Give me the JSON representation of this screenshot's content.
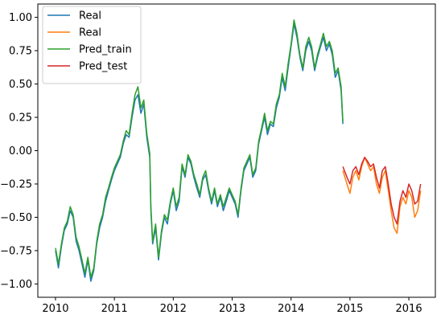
{
  "chart_data": {
    "type": "line",
    "title": "",
    "xlabel": "",
    "ylabel": "",
    "xlim": [
      2009.7,
      2016.45
    ],
    "ylim": [
      -1.1,
      1.1
    ],
    "xticks": [
      2010,
      2011,
      2012,
      2013,
      2014,
      2015,
      2016
    ],
    "xtick_labels": [
      "2010",
      "2011",
      "2012",
      "2013",
      "2014",
      "2015",
      "2016"
    ],
    "yticks": [
      -1.0,
      -0.75,
      -0.5,
      -0.25,
      0.0,
      0.25,
      0.5,
      0.75,
      1.0
    ],
    "ytick_labels": [
      "−1.00",
      "−0.75",
      "−0.50",
      "−0.25",
      "0.00",
      "0.25",
      "0.50",
      "0.75",
      "1.00"
    ],
    "grid": false,
    "legend": "upper left",
    "series": [
      {
        "name": "Real",
        "color": "#1f77b4",
        "x": [
          2010.0,
          2010.05,
          2010.1,
          2010.15,
          2010.2,
          2010.25,
          2010.3,
          2010.35,
          2010.4,
          2010.45,
          2010.5,
          2010.55,
          2010.6,
          2010.65,
          2010.7,
          2010.75,
          2010.8,
          2010.85,
          2010.9,
          2010.95,
          2011.0,
          2011.05,
          2011.1,
          2011.15,
          2011.2,
          2011.25,
          2011.3,
          2011.35,
          2011.4,
          2011.45,
          2011.5,
          2011.55,
          2011.6,
          2011.62,
          2011.65,
          2011.7,
          2011.75,
          2011.8,
          2011.85,
          2011.9,
          2011.95,
          2012.0,
          2012.05,
          2012.1,
          2012.15,
          2012.2,
          2012.25,
          2012.3,
          2012.35,
          2012.4,
          2012.45,
          2012.5,
          2012.55,
          2012.6,
          2012.65,
          2012.7,
          2012.75,
          2012.8,
          2012.85,
          2012.9,
          2012.95,
          2013.0,
          2013.05,
          2013.1,
          2013.15,
          2013.2,
          2013.25,
          2013.3,
          2013.35,
          2013.4,
          2013.45,
          2013.5,
          2013.55,
          2013.6,
          2013.65,
          2013.7,
          2013.75,
          2013.8,
          2013.85,
          2013.9,
          2013.95,
          2014.0,
          2014.05,
          2014.1,
          2014.15,
          2014.2,
          2014.25,
          2014.3,
          2014.35,
          2014.4,
          2014.45,
          2014.5,
          2014.55,
          2014.6,
          2014.65,
          2014.7,
          2014.75,
          2014.8,
          2014.85,
          2014.88
        ],
        "y": [
          -0.75,
          -0.88,
          -0.72,
          -0.6,
          -0.55,
          -0.45,
          -0.5,
          -0.68,
          -0.75,
          -0.85,
          -0.95,
          -0.82,
          -0.98,
          -0.9,
          -0.7,
          -0.58,
          -0.5,
          -0.38,
          -0.3,
          -0.22,
          -0.15,
          -0.1,
          -0.05,
          0.05,
          0.12,
          0.1,
          0.25,
          0.38,
          0.42,
          0.28,
          0.35,
          0.1,
          -0.05,
          -0.45,
          -0.7,
          -0.58,
          -0.82,
          -0.62,
          -0.5,
          -0.55,
          -0.4,
          -0.3,
          -0.45,
          -0.38,
          -0.12,
          -0.2,
          -0.05,
          -0.1,
          -0.2,
          -0.28,
          -0.35,
          -0.22,
          -0.18,
          -0.3,
          -0.4,
          -0.3,
          -0.42,
          -0.35,
          -0.45,
          -0.38,
          -0.3,
          -0.35,
          -0.4,
          -0.5,
          -0.3,
          -0.15,
          -0.1,
          -0.05,
          -0.2,
          -0.15,
          0.05,
          0.15,
          0.25,
          0.12,
          0.2,
          0.18,
          0.32,
          0.4,
          0.55,
          0.45,
          0.62,
          0.78,
          0.95,
          0.85,
          0.7,
          0.6,
          0.75,
          0.82,
          0.75,
          0.6,
          0.7,
          0.78,
          0.85,
          0.75,
          0.8,
          0.72,
          0.55,
          0.6,
          0.45,
          0.2
        ]
      },
      {
        "name": "Real",
        "color": "#ff7f0e",
        "x": [
          2014.88,
          2014.95,
          2015.0,
          2015.05,
          2015.1,
          2015.15,
          2015.2,
          2015.25,
          2015.3,
          2015.35,
          2015.4,
          2015.45,
          2015.5,
          2015.55,
          2015.6,
          2015.65,
          2015.7,
          2015.75,
          2015.8,
          2015.85,
          2015.9,
          2015.95,
          2016.0,
          2016.05,
          2016.1,
          2016.15,
          2016.2
        ],
        "y": [
          -0.15,
          -0.25,
          -0.32,
          -0.2,
          -0.15,
          -0.22,
          -0.12,
          -0.05,
          -0.1,
          -0.15,
          -0.12,
          -0.25,
          -0.32,
          -0.2,
          -0.15,
          -0.3,
          -0.45,
          -0.58,
          -0.62,
          -0.42,
          -0.35,
          -0.4,
          -0.3,
          -0.35,
          -0.5,
          -0.45,
          -0.3
        ]
      },
      {
        "name": "Pred_train",
        "color": "#2ca02c",
        "x": [
          2010.0,
          2010.05,
          2010.1,
          2010.15,
          2010.2,
          2010.25,
          2010.3,
          2010.35,
          2010.4,
          2010.45,
          2010.5,
          2010.55,
          2010.6,
          2010.65,
          2010.7,
          2010.75,
          2010.8,
          2010.85,
          2010.9,
          2010.95,
          2011.0,
          2011.05,
          2011.1,
          2011.15,
          2011.2,
          2011.25,
          2011.3,
          2011.35,
          2011.4,
          2011.45,
          2011.5,
          2011.55,
          2011.6,
          2011.62,
          2011.65,
          2011.7,
          2011.75,
          2011.8,
          2011.85,
          2011.9,
          2011.95,
          2012.0,
          2012.05,
          2012.1,
          2012.15,
          2012.2,
          2012.25,
          2012.3,
          2012.35,
          2012.4,
          2012.45,
          2012.5,
          2012.55,
          2012.6,
          2012.65,
          2012.7,
          2012.75,
          2012.8,
          2012.85,
          2012.9,
          2012.95,
          2013.0,
          2013.05,
          2013.1,
          2013.15,
          2013.2,
          2013.25,
          2013.3,
          2013.35,
          2013.4,
          2013.45,
          2013.5,
          2013.55,
          2013.6,
          2013.65,
          2013.7,
          2013.75,
          2013.8,
          2013.85,
          2013.9,
          2013.95,
          2014.0,
          2014.05,
          2014.1,
          2014.15,
          2014.2,
          2014.25,
          2014.3,
          2014.35,
          2014.4,
          2014.45,
          2014.5,
          2014.55,
          2014.6,
          2014.65,
          2014.7,
          2014.75,
          2014.8,
          2014.85,
          2014.88
        ],
        "y": [
          -0.73,
          -0.85,
          -0.7,
          -0.58,
          -0.53,
          -0.42,
          -0.48,
          -0.65,
          -0.72,
          -0.82,
          -0.92,
          -0.8,
          -0.95,
          -0.88,
          -0.68,
          -0.55,
          -0.48,
          -0.35,
          -0.28,
          -0.2,
          -0.13,
          -0.08,
          -0.03,
          0.07,
          0.15,
          0.12,
          0.28,
          0.42,
          0.48,
          0.32,
          0.38,
          0.13,
          -0.02,
          -0.42,
          -0.68,
          -0.55,
          -0.8,
          -0.6,
          -0.48,
          -0.52,
          -0.38,
          -0.28,
          -0.42,
          -0.35,
          -0.1,
          -0.18,
          -0.03,
          -0.08,
          -0.18,
          -0.25,
          -0.33,
          -0.2,
          -0.15,
          -0.28,
          -0.38,
          -0.28,
          -0.4,
          -0.33,
          -0.42,
          -0.35,
          -0.28,
          -0.33,
          -0.38,
          -0.48,
          -0.28,
          -0.13,
          -0.08,
          -0.03,
          -0.18,
          -0.13,
          0.07,
          0.17,
          0.28,
          0.15,
          0.22,
          0.2,
          0.35,
          0.42,
          0.58,
          0.48,
          0.65,
          0.8,
          0.98,
          0.88,
          0.72,
          0.62,
          0.78,
          0.85,
          0.78,
          0.62,
          0.72,
          0.8,
          0.88,
          0.78,
          0.82,
          0.75,
          0.58,
          0.62,
          0.48,
          0.22
        ]
      },
      {
        "name": "Pred_test",
        "color": "#d62728",
        "x": [
          2014.88,
          2014.95,
          2015.0,
          2015.05,
          2015.1,
          2015.15,
          2015.2,
          2015.25,
          2015.3,
          2015.35,
          2015.4,
          2015.45,
          2015.5,
          2015.55,
          2015.6,
          2015.65,
          2015.7,
          2015.75,
          2015.8,
          2015.85,
          2015.9,
          2015.95,
          2016.0,
          2016.05,
          2016.1,
          2016.15,
          2016.2
        ],
        "y": [
          -0.12,
          -0.2,
          -0.25,
          -0.15,
          -0.12,
          -0.18,
          -0.1,
          -0.05,
          -0.08,
          -0.12,
          -0.1,
          -0.2,
          -0.28,
          -0.15,
          -0.12,
          -0.25,
          -0.4,
          -0.5,
          -0.55,
          -0.38,
          -0.3,
          -0.35,
          -0.25,
          -0.3,
          -0.4,
          -0.38,
          -0.25
        ]
      }
    ]
  }
}
